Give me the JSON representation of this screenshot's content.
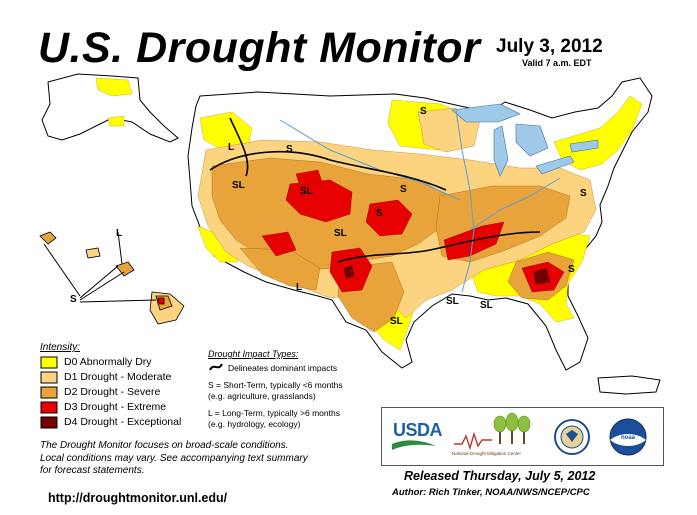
{
  "header": {
    "title": "U.S. Drought Monitor",
    "date": "July 3, 2012",
    "valid": "Valid 7 a.m. EDT"
  },
  "colors": {
    "D0": "#ffff00",
    "D1": "#fcd37f",
    "D2": "#e8a33a",
    "D3": "#e60000",
    "D4": "#730000",
    "water": "#9ec9e8"
  },
  "legend": {
    "title": "Intensity:",
    "items": [
      {
        "label": "D0 Abnormally Dry",
        "color": "#ffff00"
      },
      {
        "label": "D1 Drought - Moderate",
        "color": "#fcd37f"
      },
      {
        "label": "D2 Drought - Severe",
        "color": "#e8a33a"
      },
      {
        "label": "D3 Drought - Extreme",
        "color": "#e60000"
      },
      {
        "label": "D4 Drought - Exceptional",
        "color": "#730000"
      }
    ]
  },
  "impact_types": {
    "title": "Drought Impact Types:",
    "delineates": "Delineates dominant impacts",
    "short_term_line1": "S = Short-Term, typically <6 months",
    "short_term_line2": "(e.g. agriculture, grasslands)",
    "long_term_line1": "L = Long-Term, typically >6 months",
    "long_term_line2": "(e.g. hydrology, ecology)"
  },
  "note": {
    "line1": "The Drought Monitor focuses on broad-scale conditions.",
    "line2": "Local conditions may vary. See accompanying text summary",
    "line3": "for forecast statements."
  },
  "url": "http://droughtmonitor.unl.edu/",
  "released": "Released Thursday, July 5, 2012",
  "author": "Author: Rich Tinker, NOAA/NWS/NCEP/CPC",
  "logos": {
    "usda": "USDA",
    "ndmc": "National Drought Mitigation Center",
    "noaa": "noaa"
  },
  "map_labels": {
    "s": "S",
    "l": "L",
    "sl": "SL"
  }
}
